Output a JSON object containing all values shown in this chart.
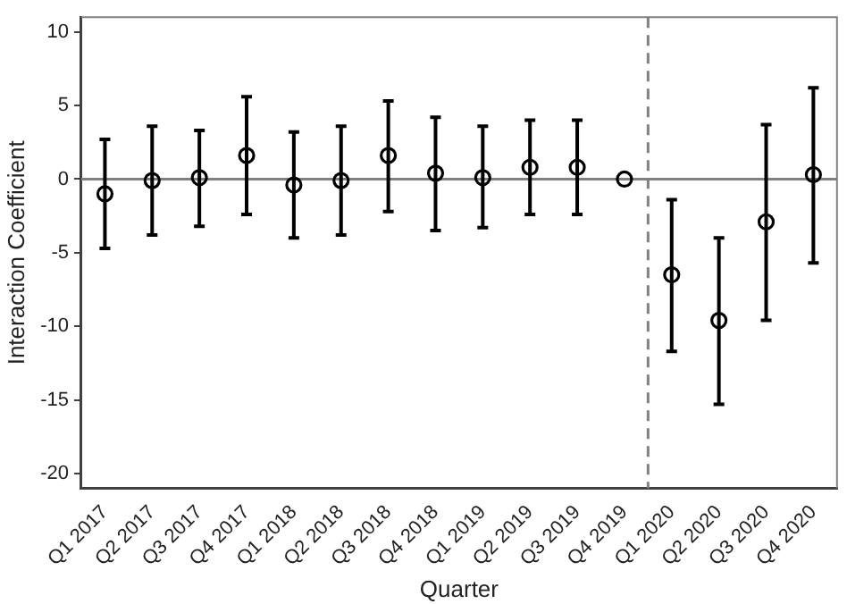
{
  "chart_data": {
    "type": "scatter",
    "xlabel": "Quarter",
    "ylabel": "Interaction Coefficient",
    "categories": [
      "Q1 2017",
      "Q2 2017",
      "Q3 2017",
      "Q4 2017",
      "Q1 2018",
      "Q2 2018",
      "Q3 2018",
      "Q4 2018",
      "Q1 2019",
      "Q2 2019",
      "Q3 2019",
      "Q4 2019",
      "Q1 2020",
      "Q2 2020",
      "Q3 2020",
      "Q4 2020"
    ],
    "series": [
      {
        "color": "#000000",
        "values": [
          -1.0,
          -0.1,
          0.1,
          1.6,
          -0.4,
          -0.1,
          1.6,
          0.4,
          0.1,
          0.8,
          0.8,
          0,
          -6.5,
          -9.6,
          -2.9,
          0.3
        ],
        "errors": [
          [
            -4.7,
            2.7
          ],
          [
            -3.8,
            3.6
          ],
          [
            -3.2,
            3.3
          ],
          [
            -2.4,
            5.6
          ],
          [
            -4.0,
            3.2
          ],
          [
            -3.8,
            3.6
          ],
          [
            -2.2,
            5.3
          ],
          [
            -3.5,
            4.2
          ],
          [
            -3.3,
            3.6
          ],
          [
            -2.4,
            4.0
          ],
          [
            -2.4,
            4.0
          ],
          null,
          [
            -11.7,
            -1.4
          ],
          [
            -15.3,
            -4.0
          ],
          [
            -9.6,
            3.7
          ],
          [
            -5.7,
            6.2
          ]
        ]
      }
    ],
    "ylim": [
      -21,
      11
    ],
    "yticks": [
      -20,
      -15,
      -10,
      -5,
      0,
      5,
      10
    ],
    "grid": false,
    "legend": false,
    "marker": "circle",
    "ref_lines": [
      {
        "axis": "y",
        "value": 0,
        "color": "#808080",
        "line_style": "solid"
      },
      {
        "axis": "x",
        "value": "Q1 2020",
        "color": "#808080",
        "line_style": "dashed"
      }
    ]
  }
}
